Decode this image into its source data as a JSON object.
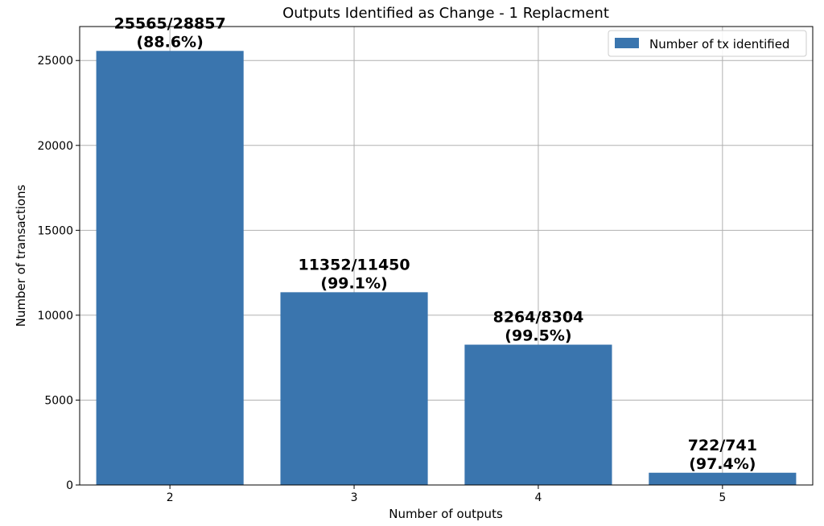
{
  "chart_data": {
    "type": "bar",
    "title": "Outputs Identified as Change - 1 Replacment",
    "xlabel": "Number of outputs",
    "ylabel": "Number of transactions",
    "categories": [
      "2",
      "3",
      "4",
      "5"
    ],
    "series": [
      {
        "name": "Number of tx identified",
        "values": [
          25565,
          11352,
          8264,
          722
        ],
        "color": "#3a75ae"
      }
    ],
    "totals": [
      28857,
      11450,
      8304,
      741
    ],
    "data_labels": [
      {
        "fraction": "25565/28857",
        "percent": "(88.6%)"
      },
      {
        "fraction": "11352/11450",
        "percent": "(99.1%)"
      },
      {
        "fraction": "8264/8304",
        "percent": "(99.5%)"
      },
      {
        "fraction": "722/741",
        "percent": "(97.4%)"
      }
    ],
    "ylim": [
      0,
      27000
    ],
    "yticks": [
      0,
      5000,
      10000,
      15000,
      20000,
      25000
    ],
    "ytick_labels": [
      "0",
      "5000",
      "10000",
      "15000",
      "20000",
      "25000"
    ],
    "grid": true,
    "legend_position": "top-right"
  }
}
